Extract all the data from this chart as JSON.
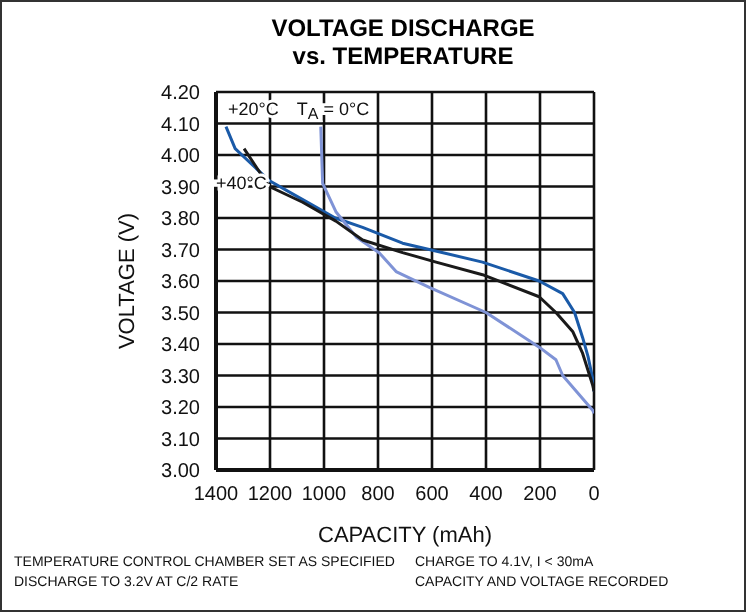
{
  "chart_data": {
    "type": "line",
    "title": "VOLTAGE DISCHARGE",
    "subtitle": "vs. TEMPERATURE",
    "xlabel": "CAPACITY (mAh)",
    "ylabel": "VOLTAGE (V)",
    "xlim": [
      1400,
      0
    ],
    "xticks": [
      1400,
      1200,
      1000,
      800,
      600,
      400,
      200,
      0
    ],
    "ylim": [
      3.0,
      4.2
    ],
    "yticks": [
      {
        "value": 3.0,
        "label": "3.00"
      },
      {
        "value": 3.1,
        "label": "3.10"
      },
      {
        "value": 3.2,
        "label": "3.20"
      },
      {
        "value": 3.3,
        "label": "3.30"
      },
      {
        "value": 3.4,
        "label": "3.40"
      },
      {
        "value": 3.5,
        "label": "3.50"
      },
      {
        "value": 3.6,
        "label": "3.60"
      },
      {
        "value": 3.7,
        "label": "3.70"
      },
      {
        "value": 3.8,
        "label": "3.80"
      },
      {
        "value": 3.9,
        "label": "3.90"
      },
      {
        "value": 4.0,
        "label": "4.00"
      },
      {
        "value": 4.1,
        "label": "4.10"
      },
      {
        "value": 4.2,
        "label": "4.20"
      }
    ],
    "grid": true,
    "legend": false,
    "marker": "none",
    "line_style": "solid",
    "series": [
      {
        "name": "+20°C",
        "color": "#1a5aa8",
        "x": [
          1363,
          1329,
          1205,
          1082,
          958,
          857,
          709,
          610,
          413,
          203,
          116,
          72,
          42,
          22,
          5,
          0
        ],
        "values": [
          4.09,
          4.02,
          3.92,
          3.86,
          3.8,
          3.77,
          3.72,
          3.7,
          3.66,
          3.6,
          3.56,
          3.5,
          3.42,
          3.36,
          3.29,
          3.25
        ]
      },
      {
        "name": "T$_{A}$ = 0°C",
        "color": "#7f93d6",
        "x": [
          1012,
          1005,
          956,
          881,
          796,
          733,
          610,
          400,
          203,
          141,
          116,
          5,
          0
        ],
        "values": [
          4.09,
          3.91,
          3.82,
          3.74,
          3.69,
          3.63,
          3.58,
          3.5,
          3.39,
          3.35,
          3.3,
          3.19,
          3.18
        ]
      },
      {
        "name": "+40°C",
        "color": "#1a1a1a",
        "x": [
          1296,
          1203,
          1079,
          956,
          857,
          709,
          585,
          413,
          203,
          141,
          79,
          42,
          5,
          0
        ],
        "values": [
          4.02,
          3.9,
          3.85,
          3.79,
          3.73,
          3.69,
          3.66,
          3.62,
          3.55,
          3.5,
          3.44,
          3.37,
          3.27,
          3.25
        ]
      }
    ],
    "annotations": [
      "TEMPERATURE CONTROL CHAMBER SET AS SPECIFIED",
      "DISCHARGE TO 3.2V AT C/2 RATE",
      "CHARGE TO 4.1V, I < 30mA",
      "CAPACITY AND VOLTAGE RECORDED"
    ]
  }
}
